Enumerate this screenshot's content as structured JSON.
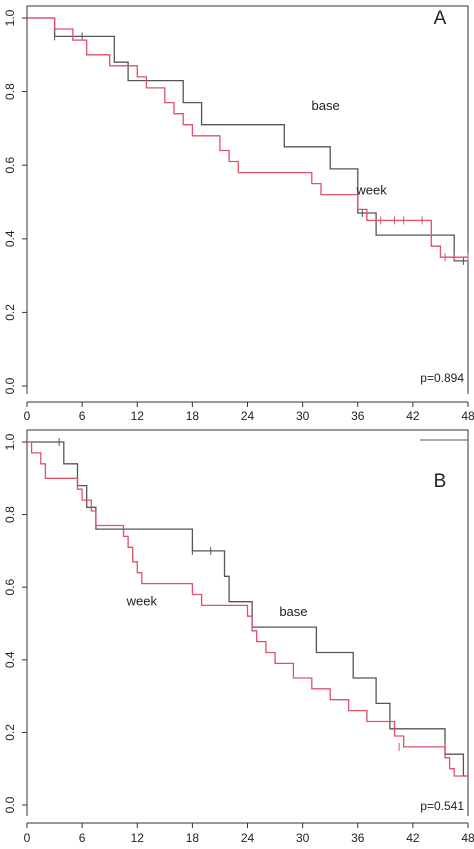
{
  "chart_data": [
    {
      "type": "line",
      "step": true,
      "panel_label": "A",
      "xlim": [
        0,
        48
      ],
      "ylim": [
        0,
        1
      ],
      "xticks": [
        "0",
        "6",
        "12",
        "18",
        "24",
        "30",
        "36",
        "42",
        "48"
      ],
      "yticks": [
        "0.0",
        "0.2",
        "0.4",
        "0.6",
        "0.8",
        "1.0"
      ],
      "annotation": "p=0.894",
      "series": [
        {
          "name": "base",
          "color": "#555555",
          "points": [
            [
              0,
              1.0
            ],
            [
              3,
              1.0
            ],
            [
              3,
              0.95
            ],
            [
              9.5,
              0.95
            ],
            [
              9.5,
              0.88
            ],
            [
              11,
              0.88
            ],
            [
              11,
              0.83
            ],
            [
              17,
              0.83
            ],
            [
              17,
              0.77
            ],
            [
              19,
              0.77
            ],
            [
              19,
              0.71
            ],
            [
              28,
              0.71
            ],
            [
              28,
              0.65
            ],
            [
              33,
              0.65
            ],
            [
              33,
              0.59
            ],
            [
              36,
              0.59
            ],
            [
              36,
              0.47
            ],
            [
              38,
              0.47
            ],
            [
              38,
              0.41
            ],
            [
              46.5,
              0.41
            ],
            [
              46.5,
              0.34
            ],
            [
              48,
              0.34
            ]
          ],
          "censored": [
            [
              3,
              0.95
            ],
            [
              6,
              0.95
            ],
            [
              36.5,
              0.47
            ],
            [
              47.5,
              0.34
            ]
          ]
        },
        {
          "name": "week",
          "color": "#e0506a",
          "points": [
            [
              0,
              1.0
            ],
            [
              3,
              1.0
            ],
            [
              3,
              0.97
            ],
            [
              5,
              0.97
            ],
            [
              5,
              0.94
            ],
            [
              6.5,
              0.94
            ],
            [
              6.5,
              0.9
            ],
            [
              9,
              0.9
            ],
            [
              9,
              0.87
            ],
            [
              12,
              0.87
            ],
            [
              12,
              0.84
            ],
            [
              13,
              0.84
            ],
            [
              13,
              0.81
            ],
            [
              15,
              0.81
            ],
            [
              15,
              0.77
            ],
            [
              16,
              0.77
            ],
            [
              16,
              0.74
            ],
            [
              17,
              0.74
            ],
            [
              17,
              0.71
            ],
            [
              18,
              0.71
            ],
            [
              18,
              0.68
            ],
            [
              21,
              0.68
            ],
            [
              21,
              0.64
            ],
            [
              22,
              0.64
            ],
            [
              22,
              0.61
            ],
            [
              23,
              0.61
            ],
            [
              23,
              0.58
            ],
            [
              31,
              0.58
            ],
            [
              31,
              0.55
            ],
            [
              32,
              0.55
            ],
            [
              32,
              0.52
            ],
            [
              36,
              0.52
            ],
            [
              36,
              0.48
            ],
            [
              37,
              0.48
            ],
            [
              37,
              0.45
            ],
            [
              44,
              0.45
            ],
            [
              44,
              0.38
            ],
            [
              45,
              0.38
            ],
            [
              45,
              0.35
            ],
            [
              48,
              0.35
            ]
          ],
          "censored": [
            [
              38.5,
              0.45
            ],
            [
              40,
              0.45
            ],
            [
              41,
              0.45
            ],
            [
              43,
              0.45
            ],
            [
              45.5,
              0.35
            ],
            [
              46.5,
              0.35
            ],
            [
              48,
              0.35
            ]
          ]
        }
      ],
      "labels": [
        {
          "text": "base",
          "x": 32.5,
          "y": 0.75
        },
        {
          "text": "week",
          "x": 37.5,
          "y": 0.52
        }
      ]
    },
    {
      "type": "line",
      "step": true,
      "panel_label": "B",
      "xlim": [
        0,
        48
      ],
      "ylim": [
        0,
        1
      ],
      "xticks": [
        "0",
        "6",
        "12",
        "18",
        "24",
        "30",
        "36",
        "42",
        "48"
      ],
      "yticks": [
        "0.0",
        "0.2",
        "0.4",
        "0.6",
        "0.8",
        "1.0"
      ],
      "annotation": "p=0.541",
      "series": [
        {
          "name": "base",
          "color": "#555555",
          "points": [
            [
              0,
              1.0
            ],
            [
              4,
              1.0
            ],
            [
              4,
              0.94
            ],
            [
              5.5,
              0.94
            ],
            [
              5.5,
              0.88
            ],
            [
              6.5,
              0.88
            ],
            [
              6.5,
              0.82
            ],
            [
              7.5,
              0.82
            ],
            [
              7.5,
              0.76
            ],
            [
              18,
              0.76
            ],
            [
              18,
              0.7
            ],
            [
              21.5,
              0.7
            ],
            [
              21.5,
              0.63
            ],
            [
              22,
              0.63
            ],
            [
              22,
              0.56
            ],
            [
              24.5,
              0.56
            ],
            [
              24.5,
              0.49
            ],
            [
              31.5,
              0.49
            ],
            [
              31.5,
              0.42
            ],
            [
              35.5,
              0.42
            ],
            [
              35.5,
              0.35
            ],
            [
              38,
              0.35
            ],
            [
              38,
              0.28
            ],
            [
              39.5,
              0.28
            ],
            [
              39.5,
              0.21
            ],
            [
              45.5,
              0.21
            ],
            [
              45.5,
              0.14
            ],
            [
              47.5,
              0.14
            ],
            [
              47.5,
              0.08
            ],
            [
              48,
              0.08
            ]
          ],
          "censored": [
            [
              3.5,
              1.0
            ],
            [
              18,
              0.7
            ],
            [
              20,
              0.7
            ],
            [
              45.5,
              0.16
            ]
          ]
        },
        {
          "name": "week",
          "color": "#e0506a",
          "points": [
            [
              0,
              1.0
            ],
            [
              0.5,
              1.0
            ],
            [
              0.5,
              0.97
            ],
            [
              1.5,
              0.97
            ],
            [
              1.5,
              0.94
            ],
            [
              2,
              0.94
            ],
            [
              2,
              0.9
            ],
            [
              5.5,
              0.9
            ],
            [
              5.5,
              0.87
            ],
            [
              6,
              0.87
            ],
            [
              6,
              0.84
            ],
            [
              7,
              0.84
            ],
            [
              7,
              0.81
            ],
            [
              7.5,
              0.81
            ],
            [
              7.5,
              0.77
            ],
            [
              10.5,
              0.77
            ],
            [
              10.5,
              0.74
            ],
            [
              11,
              0.74
            ],
            [
              11,
              0.71
            ],
            [
              11.5,
              0.71
            ],
            [
              11.5,
              0.67
            ],
            [
              12,
              0.67
            ],
            [
              12,
              0.64
            ],
            [
              12.5,
              0.64
            ],
            [
              12.5,
              0.61
            ],
            [
              18,
              0.61
            ],
            [
              18,
              0.58
            ],
            [
              19,
              0.58
            ],
            [
              19,
              0.55
            ],
            [
              24,
              0.55
            ],
            [
              24,
              0.52
            ],
            [
              24.5,
              0.52
            ],
            [
              24.5,
              0.48
            ],
            [
              25,
              0.48
            ],
            [
              25,
              0.45
            ],
            [
              26,
              0.45
            ],
            [
              26,
              0.42
            ],
            [
              27,
              0.42
            ],
            [
              27,
              0.39
            ],
            [
              29,
              0.39
            ],
            [
              29,
              0.35
            ],
            [
              31,
              0.35
            ],
            [
              31,
              0.32
            ],
            [
              33,
              0.32
            ],
            [
              33,
              0.29
            ],
            [
              35,
              0.29
            ],
            [
              35,
              0.26
            ],
            [
              37,
              0.26
            ],
            [
              37,
              0.23
            ],
            [
              40,
              0.23
            ],
            [
              40,
              0.19
            ],
            [
              41,
              0.19
            ],
            [
              41,
              0.16
            ],
            [
              45.5,
              0.16
            ],
            [
              45.5,
              0.13
            ],
            [
              46,
              0.13
            ],
            [
              46,
              0.1
            ],
            [
              46.5,
              0.1
            ],
            [
              46.5,
              0.08
            ],
            [
              48,
              0.08
            ]
          ],
          "censored": [
            [
              40.5,
              0.16
            ],
            [
              45.5,
              0.16
            ]
          ]
        }
      ],
      "labels": [
        {
          "text": "base",
          "x": 29,
          "y": 0.52
        },
        {
          "text": "week",
          "x": 12.5,
          "y": 0.55
        }
      ]
    }
  ]
}
